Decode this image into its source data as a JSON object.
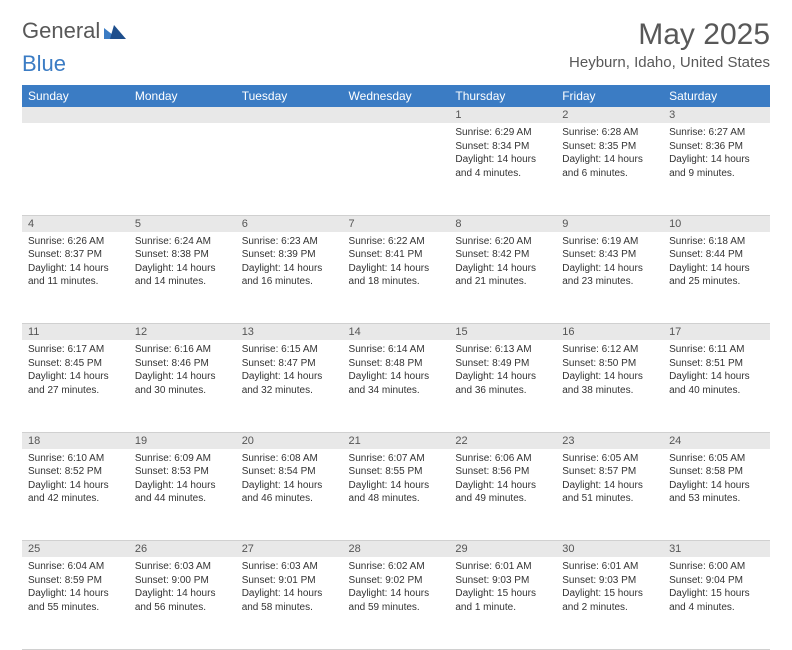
{
  "logo": {
    "word1": "General",
    "word2": "Blue"
  },
  "title": "May 2025",
  "location": "Heyburn, Idaho, United States",
  "colors": {
    "header_bg": "#3b7cc4",
    "header_text": "#ffffff",
    "daynum_bg": "#e8e8e8",
    "text": "#333333",
    "title_text": "#585858"
  },
  "day_headers": [
    "Sunday",
    "Monday",
    "Tuesday",
    "Wednesday",
    "Thursday",
    "Friday",
    "Saturday"
  ],
  "weeks": [
    [
      null,
      null,
      null,
      null,
      {
        "n": "1",
        "sr": "6:29 AM",
        "ss": "8:34 PM",
        "dl": "14 hours and 4 minutes."
      },
      {
        "n": "2",
        "sr": "6:28 AM",
        "ss": "8:35 PM",
        "dl": "14 hours and 6 minutes."
      },
      {
        "n": "3",
        "sr": "6:27 AM",
        "ss": "8:36 PM",
        "dl": "14 hours and 9 minutes."
      }
    ],
    [
      {
        "n": "4",
        "sr": "6:26 AM",
        "ss": "8:37 PM",
        "dl": "14 hours and 11 minutes."
      },
      {
        "n": "5",
        "sr": "6:24 AM",
        "ss": "8:38 PM",
        "dl": "14 hours and 14 minutes."
      },
      {
        "n": "6",
        "sr": "6:23 AM",
        "ss": "8:39 PM",
        "dl": "14 hours and 16 minutes."
      },
      {
        "n": "7",
        "sr": "6:22 AM",
        "ss": "8:41 PM",
        "dl": "14 hours and 18 minutes."
      },
      {
        "n": "8",
        "sr": "6:20 AM",
        "ss": "8:42 PM",
        "dl": "14 hours and 21 minutes."
      },
      {
        "n": "9",
        "sr": "6:19 AM",
        "ss": "8:43 PM",
        "dl": "14 hours and 23 minutes."
      },
      {
        "n": "10",
        "sr": "6:18 AM",
        "ss": "8:44 PM",
        "dl": "14 hours and 25 minutes."
      }
    ],
    [
      {
        "n": "11",
        "sr": "6:17 AM",
        "ss": "8:45 PM",
        "dl": "14 hours and 27 minutes."
      },
      {
        "n": "12",
        "sr": "6:16 AM",
        "ss": "8:46 PM",
        "dl": "14 hours and 30 minutes."
      },
      {
        "n": "13",
        "sr": "6:15 AM",
        "ss": "8:47 PM",
        "dl": "14 hours and 32 minutes."
      },
      {
        "n": "14",
        "sr": "6:14 AM",
        "ss": "8:48 PM",
        "dl": "14 hours and 34 minutes."
      },
      {
        "n": "15",
        "sr": "6:13 AM",
        "ss": "8:49 PM",
        "dl": "14 hours and 36 minutes."
      },
      {
        "n": "16",
        "sr": "6:12 AM",
        "ss": "8:50 PM",
        "dl": "14 hours and 38 minutes."
      },
      {
        "n": "17",
        "sr": "6:11 AM",
        "ss": "8:51 PM",
        "dl": "14 hours and 40 minutes."
      }
    ],
    [
      {
        "n": "18",
        "sr": "6:10 AM",
        "ss": "8:52 PM",
        "dl": "14 hours and 42 minutes."
      },
      {
        "n": "19",
        "sr": "6:09 AM",
        "ss": "8:53 PM",
        "dl": "14 hours and 44 minutes."
      },
      {
        "n": "20",
        "sr": "6:08 AM",
        "ss": "8:54 PM",
        "dl": "14 hours and 46 minutes."
      },
      {
        "n": "21",
        "sr": "6:07 AM",
        "ss": "8:55 PM",
        "dl": "14 hours and 48 minutes."
      },
      {
        "n": "22",
        "sr": "6:06 AM",
        "ss": "8:56 PM",
        "dl": "14 hours and 49 minutes."
      },
      {
        "n": "23",
        "sr": "6:05 AM",
        "ss": "8:57 PM",
        "dl": "14 hours and 51 minutes."
      },
      {
        "n": "24",
        "sr": "6:05 AM",
        "ss": "8:58 PM",
        "dl": "14 hours and 53 minutes."
      }
    ],
    [
      {
        "n": "25",
        "sr": "6:04 AM",
        "ss": "8:59 PM",
        "dl": "14 hours and 55 minutes."
      },
      {
        "n": "26",
        "sr": "6:03 AM",
        "ss": "9:00 PM",
        "dl": "14 hours and 56 minutes."
      },
      {
        "n": "27",
        "sr": "6:03 AM",
        "ss": "9:01 PM",
        "dl": "14 hours and 58 minutes."
      },
      {
        "n": "28",
        "sr": "6:02 AM",
        "ss": "9:02 PM",
        "dl": "14 hours and 59 minutes."
      },
      {
        "n": "29",
        "sr": "6:01 AM",
        "ss": "9:03 PM",
        "dl": "15 hours and 1 minute."
      },
      {
        "n": "30",
        "sr": "6:01 AM",
        "ss": "9:03 PM",
        "dl": "15 hours and 2 minutes."
      },
      {
        "n": "31",
        "sr": "6:00 AM",
        "ss": "9:04 PM",
        "dl": "15 hours and 4 minutes."
      }
    ]
  ],
  "labels": {
    "sunrise": "Sunrise:",
    "sunset": "Sunset:",
    "daylight": "Daylight:"
  }
}
